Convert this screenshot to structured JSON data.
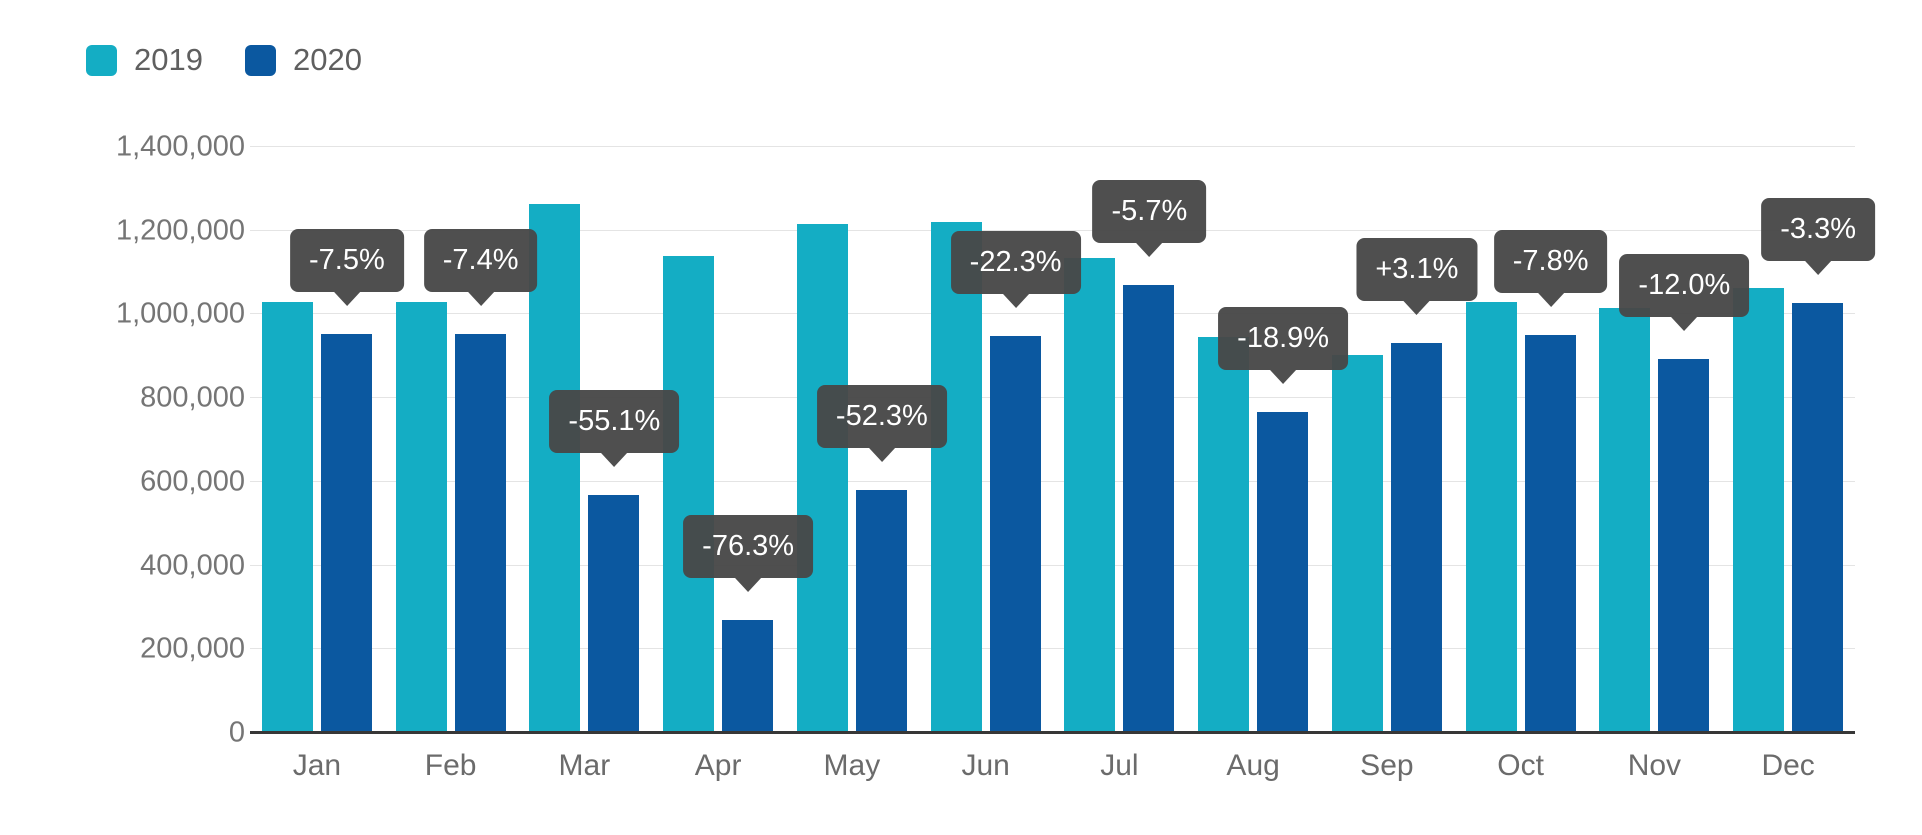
{
  "legend": {
    "items": [
      {
        "label": "2019",
        "color": "#14adc4"
      },
      {
        "label": "2020",
        "color": "#0b58a0"
      }
    ]
  },
  "chart_data": {
    "type": "bar",
    "title": "",
    "xlabel": "",
    "ylabel": "",
    "categories": [
      "Jan",
      "Feb",
      "Mar",
      "Apr",
      "May",
      "Jun",
      "Jul",
      "Aug",
      "Sep",
      "Oct",
      "Nov",
      "Dec"
    ],
    "series": [
      {
        "name": "2019",
        "color": "#14adc4",
        "values": [
          1030000,
          1030000,
          1265000,
          1140000,
          1215000,
          1220000,
          1135000,
          945000,
          903000,
          1030000,
          1015000,
          1063000
        ]
      },
      {
        "name": "2020",
        "color": "#0b58a0",
        "values": [
          953000,
          954000,
          568000,
          270000,
          580000,
          948000,
          1070000,
          766000,
          931000,
          950000,
          893000,
          1028000
        ]
      }
    ],
    "delta_labels": [
      "-7.5%",
      "-7.4%",
      "-55.1%",
      "-76.3%",
      "-52.3%",
      "-22.3%",
      "-5.7%",
      "-18.9%",
      "+3.1%",
      "-7.8%",
      "-12.0%",
      "-3.3%"
    ],
    "ylim": [
      0,
      1400000
    ],
    "yticks": [
      0,
      200000,
      400000,
      600000,
      800000,
      1000000,
      1200000,
      1400000
    ],
    "ytick_labels": [
      "0",
      "200,000",
      "400,000",
      "600,000",
      "800,000",
      "1,000,000",
      "1,200,000",
      "1,400,000"
    ],
    "grid": "horizontal",
    "legend_position": "top-left",
    "badge_color": "#484848",
    "badge_text_color": "#ffffff"
  }
}
